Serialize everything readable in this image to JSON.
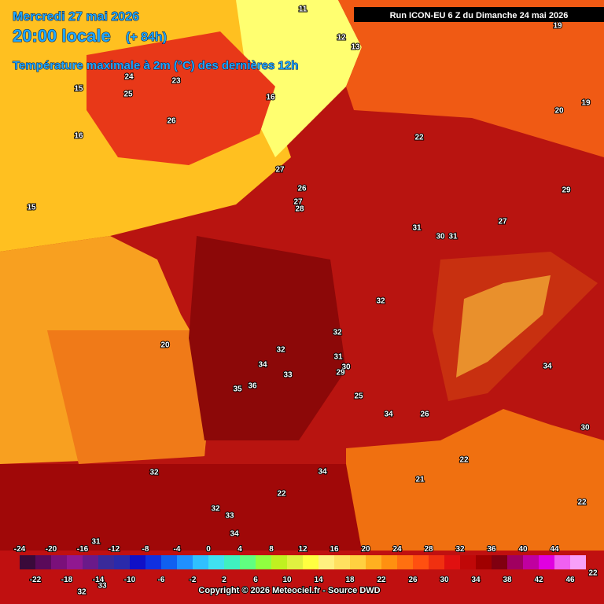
{
  "header": {
    "date": "Mercredi 27 mai 2026",
    "time": "20:00 locale",
    "lead": "(+ 84h)",
    "title": "Température maximale à 2m (°C) des dernières 12h",
    "run": "Run ICON-EU 6 Z du Dimanche 24 mai 2026"
  },
  "map_labels": [
    11,
    12,
    13,
    19,
    23,
    24,
    15,
    16,
    25,
    26,
    19,
    20,
    16,
    22,
    27,
    26,
    29,
    27,
    28,
    15,
    31,
    30,
    31,
    27,
    32,
    32,
    20,
    32,
    31,
    34,
    30,
    33,
    29,
    35,
    36,
    34,
    25,
    34,
    26,
    30,
    22,
    32,
    34,
    21,
    22,
    32,
    33,
    34,
    31,
    22,
    32,
    33,
    22
  ],
  "scale": {
    "top_labels": [
      -24,
      -20,
      -16,
      -12,
      -8,
      -4,
      0,
      4,
      8,
      12,
      16,
      20,
      24,
      28,
      32,
      36,
      40,
      44
    ],
    "bottom_labels": [
      -22,
      -18,
      -14,
      -10,
      -6,
      -2,
      2,
      6,
      10,
      14,
      18,
      22,
      26,
      30,
      34,
      38,
      42,
      46
    ],
    "colors": [
      "#3a0a3a",
      "#5a0a5a",
      "#7a107a",
      "#901890",
      "#6a1a8a",
      "#3a2a9a",
      "#2a2aaa",
      "#1010c8",
      "#1030e0",
      "#1060f0",
      "#2090ff",
      "#30c0ff",
      "#40e0f0",
      "#40f0c0",
      "#60ff80",
      "#90ff40",
      "#c0f020",
      "#e0f040",
      "#ffff40",
      "#fff080",
      "#ffe060",
      "#ffd040",
      "#ffb020",
      "#ff9010",
      "#ff7010",
      "#ff5010",
      "#f03010",
      "#e01010",
      "#c00808",
      "#a00000",
      "#800010",
      "#a00060",
      "#c000a0",
      "#e000e0",
      "#f060f0",
      "#f8a0f8"
    ]
  },
  "footer": {
    "copyright": "Copyright © 2026 Meteociel.fr - Source DWD"
  }
}
